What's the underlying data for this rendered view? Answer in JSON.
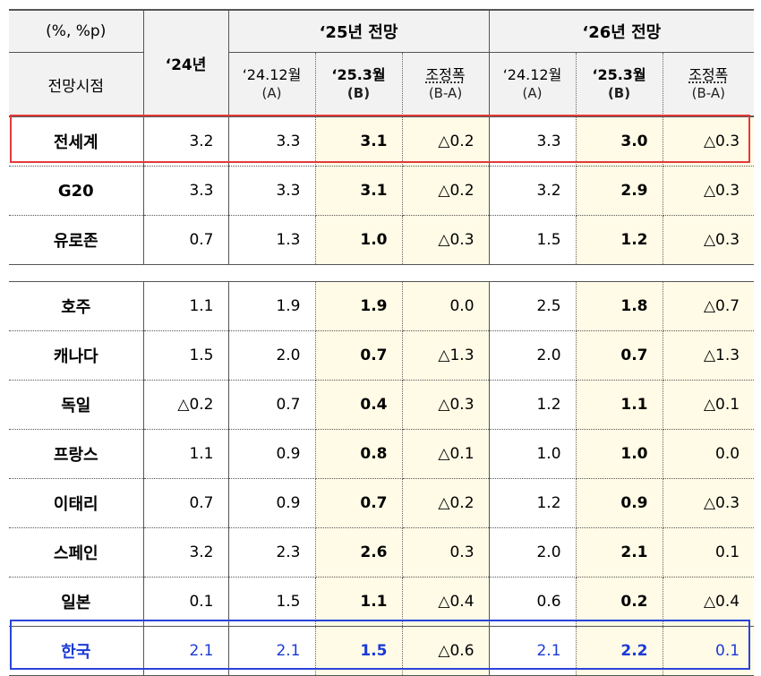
{
  "header": {
    "unit": "(%, %p)",
    "row_label": "전망시점",
    "col_2024": "‘24년",
    "group_2025": "‘25년 전망",
    "group_2026": "‘26년 전망",
    "sub": {
      "a_label": "‘24.12월",
      "a_note": "(A)",
      "b_label": "‘25.3월",
      "b_note": "(B)",
      "adj_label": "조정폭",
      "adj_note": "(B-A)"
    }
  },
  "rows": [
    {
      "country": "전세계",
      "y24": "3.2",
      "y25a": "3.3",
      "y25b": "3.1",
      "y25adj": "△0.2",
      "y26a": "3.3",
      "y26b": "3.0",
      "y26adj": "△0.3"
    },
    {
      "country": "G20",
      "y24": "3.3",
      "y25a": "3.3",
      "y25b": "3.1",
      "y25adj": "△0.2",
      "y26a": "3.2",
      "y26b": "2.9",
      "y26adj": "△0.3"
    },
    {
      "country": "유로존",
      "y24": "0.7",
      "y25a": "1.3",
      "y25b": "1.0",
      "y25adj": "△0.3",
      "y26a": "1.5",
      "y26b": "1.2",
      "y26adj": "△0.3"
    },
    {
      "country": "호주",
      "y24": "1.1",
      "y25a": "1.9",
      "y25b": "1.9",
      "y25adj": "0.0",
      "y26a": "2.5",
      "y26b": "1.8",
      "y26adj": "△0.7"
    },
    {
      "country": "캐나다",
      "y24": "1.5",
      "y25a": "2.0",
      "y25b": "0.7",
      "y25adj": "△1.3",
      "y26a": "2.0",
      "y26b": "0.7",
      "y26adj": "△1.3"
    },
    {
      "country": "독일",
      "y24": "△0.2",
      "y25a": "0.7",
      "y25b": "0.4",
      "y25adj": "△0.3",
      "y26a": "1.2",
      "y26b": "1.1",
      "y26adj": "△0.1"
    },
    {
      "country": "프랑스",
      "y24": "1.1",
      "y25a": "0.9",
      "y25b": "0.8",
      "y25adj": "△0.1",
      "y26a": "1.0",
      "y26b": "1.0",
      "y26adj": "0.0"
    },
    {
      "country": "이태리",
      "y24": "0.7",
      "y25a": "0.9",
      "y25b": "0.7",
      "y25adj": "△0.2",
      "y26a": "1.2",
      "y26b": "0.9",
      "y26adj": "△0.3"
    },
    {
      "country": "스페인",
      "y24": "3.2",
      "y25a": "2.3",
      "y25b": "2.6",
      "y25adj": "0.3",
      "y26a": "2.0",
      "y26b": "2.1",
      "y26adj": "0.1"
    },
    {
      "country": "일본",
      "y24": "0.1",
      "y25a": "1.5",
      "y25b": "1.1",
      "y25adj": "△0.4",
      "y26a": "0.6",
      "y26b": "0.2",
      "y26adj": "△0.4"
    },
    {
      "country": "한국",
      "y24": "2.1",
      "y25a": "2.1",
      "y25b": "1.5",
      "y25adj": "△0.6",
      "y26a": "2.1",
      "y26b": "2.2",
      "y26adj": "0.1"
    }
  ],
  "colors": {
    "highlight_world": "#e23a3a",
    "highlight_korea": "#2b43d8",
    "korea_text": "#1a3ad6",
    "shade_b": "#fffbe6",
    "header_bg": "#f2f2f2"
  }
}
